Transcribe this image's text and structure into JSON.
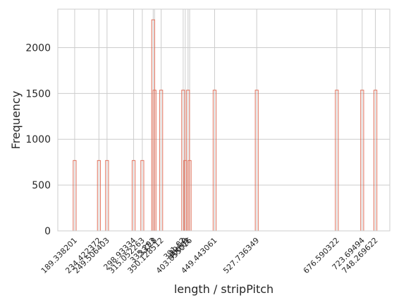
{
  "chart_data": {
    "type": "histogram",
    "xlabel": "length / stripPitch",
    "ylabel": "Frequency",
    "ylim": [
      0,
      2420
    ],
    "xlim": [
      158,
      775
    ],
    "y_ticks": [
      0,
      500,
      1000,
      1500,
      2000
    ],
    "grid": true,
    "bar_color": "#e0705a",
    "bins": [
      {
        "x": 189.338201,
        "count": 768
      },
      {
        "x": 234.422372,
        "count": 768
      },
      {
        "x": 249.506403,
        "count": 768
      },
      {
        "x": 298.93334,
        "count": 768
      },
      {
        "x": 315.052263,
        "count": 768
      },
      {
        "x": 335.293,
        "count": 2304
      },
      {
        "x": 337.8,
        "count": 1536
      },
      {
        "x": 350.128512,
        "count": 1536
      },
      {
        "x": 391.02,
        "count": 1536
      },
      {
        "x": 394.9,
        "count": 768
      },
      {
        "x": 400.02,
        "count": 1536
      },
      {
        "x": 403.055016,
        "count": 768
      },
      {
        "x": 449.443061,
        "count": 1536
      },
      {
        "x": 527.736349,
        "count": 1536
      },
      {
        "x": 676.590322,
        "count": 1536
      },
      {
        "x": 723.69494,
        "count": 1536
      },
      {
        "x": 748.269622,
        "count": 1536
      }
    ],
    "x_tick_labels": [
      {
        "value": 189.338201,
        "label": "189.338201"
      },
      {
        "value": 234.422372,
        "label": "234.422372"
      },
      {
        "value": 249.506403,
        "label": "249.506403"
      },
      {
        "value": 298.93334,
        "label": "298.93334"
      },
      {
        "value": 315.052263,
        "label": "315.052263"
      },
      {
        "value": 335.293,
        "label": "335.293"
      },
      {
        "value": 337.8,
        "label": "337.8"
      },
      {
        "value": 350.128512,
        "label": "350.128512"
      },
      {
        "value": 391.02,
        "label": "391.02"
      },
      {
        "value": 394.9,
        "label": "394.9"
      },
      {
        "value": 400.02,
        "label": "400.02"
      },
      {
        "value": 403.055016,
        "label": "403.055016"
      },
      {
        "value": 449.443061,
        "label": "449.443061"
      },
      {
        "value": 527.736349,
        "label": "527.736349"
      },
      {
        "value": 676.590322,
        "label": "676.590322"
      },
      {
        "value": 723.69494,
        "label": "723.69494"
      },
      {
        "value": 748.269622,
        "label": "748.269622"
      }
    ]
  }
}
